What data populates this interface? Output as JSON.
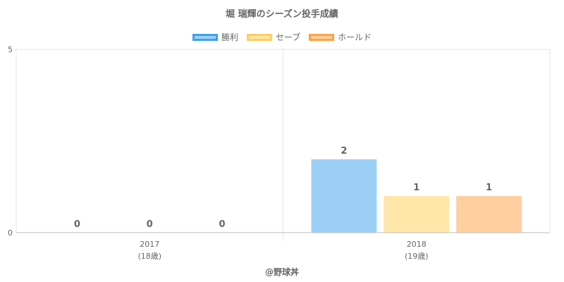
{
  "chart_data": {
    "type": "bar",
    "title": "堀 瑞輝のシーズン投手成績",
    "categories": [
      "2017",
      "2018"
    ],
    "category_sublabels": [
      "(18歳)",
      "(19歳)"
    ],
    "series": [
      {
        "name": "勝利",
        "values": [
          0,
          2
        ],
        "fill": "#9ccff5",
        "border": "#3ea2ea"
      },
      {
        "name": "セーブ",
        "values": [
          0,
          1
        ],
        "fill": "#ffe6a9",
        "border": "#ffce5c"
      },
      {
        "name": "ホールド",
        "values": [
          0,
          1
        ],
        "fill": "#ffcf9f",
        "border": "#ffa242"
      }
    ],
    "ylim": [
      0,
      5
    ],
    "yticks": [
      "0",
      "5"
    ],
    "grid": true,
    "legend_position": "top"
  },
  "footer": {
    "credit": "@野球丼"
  }
}
